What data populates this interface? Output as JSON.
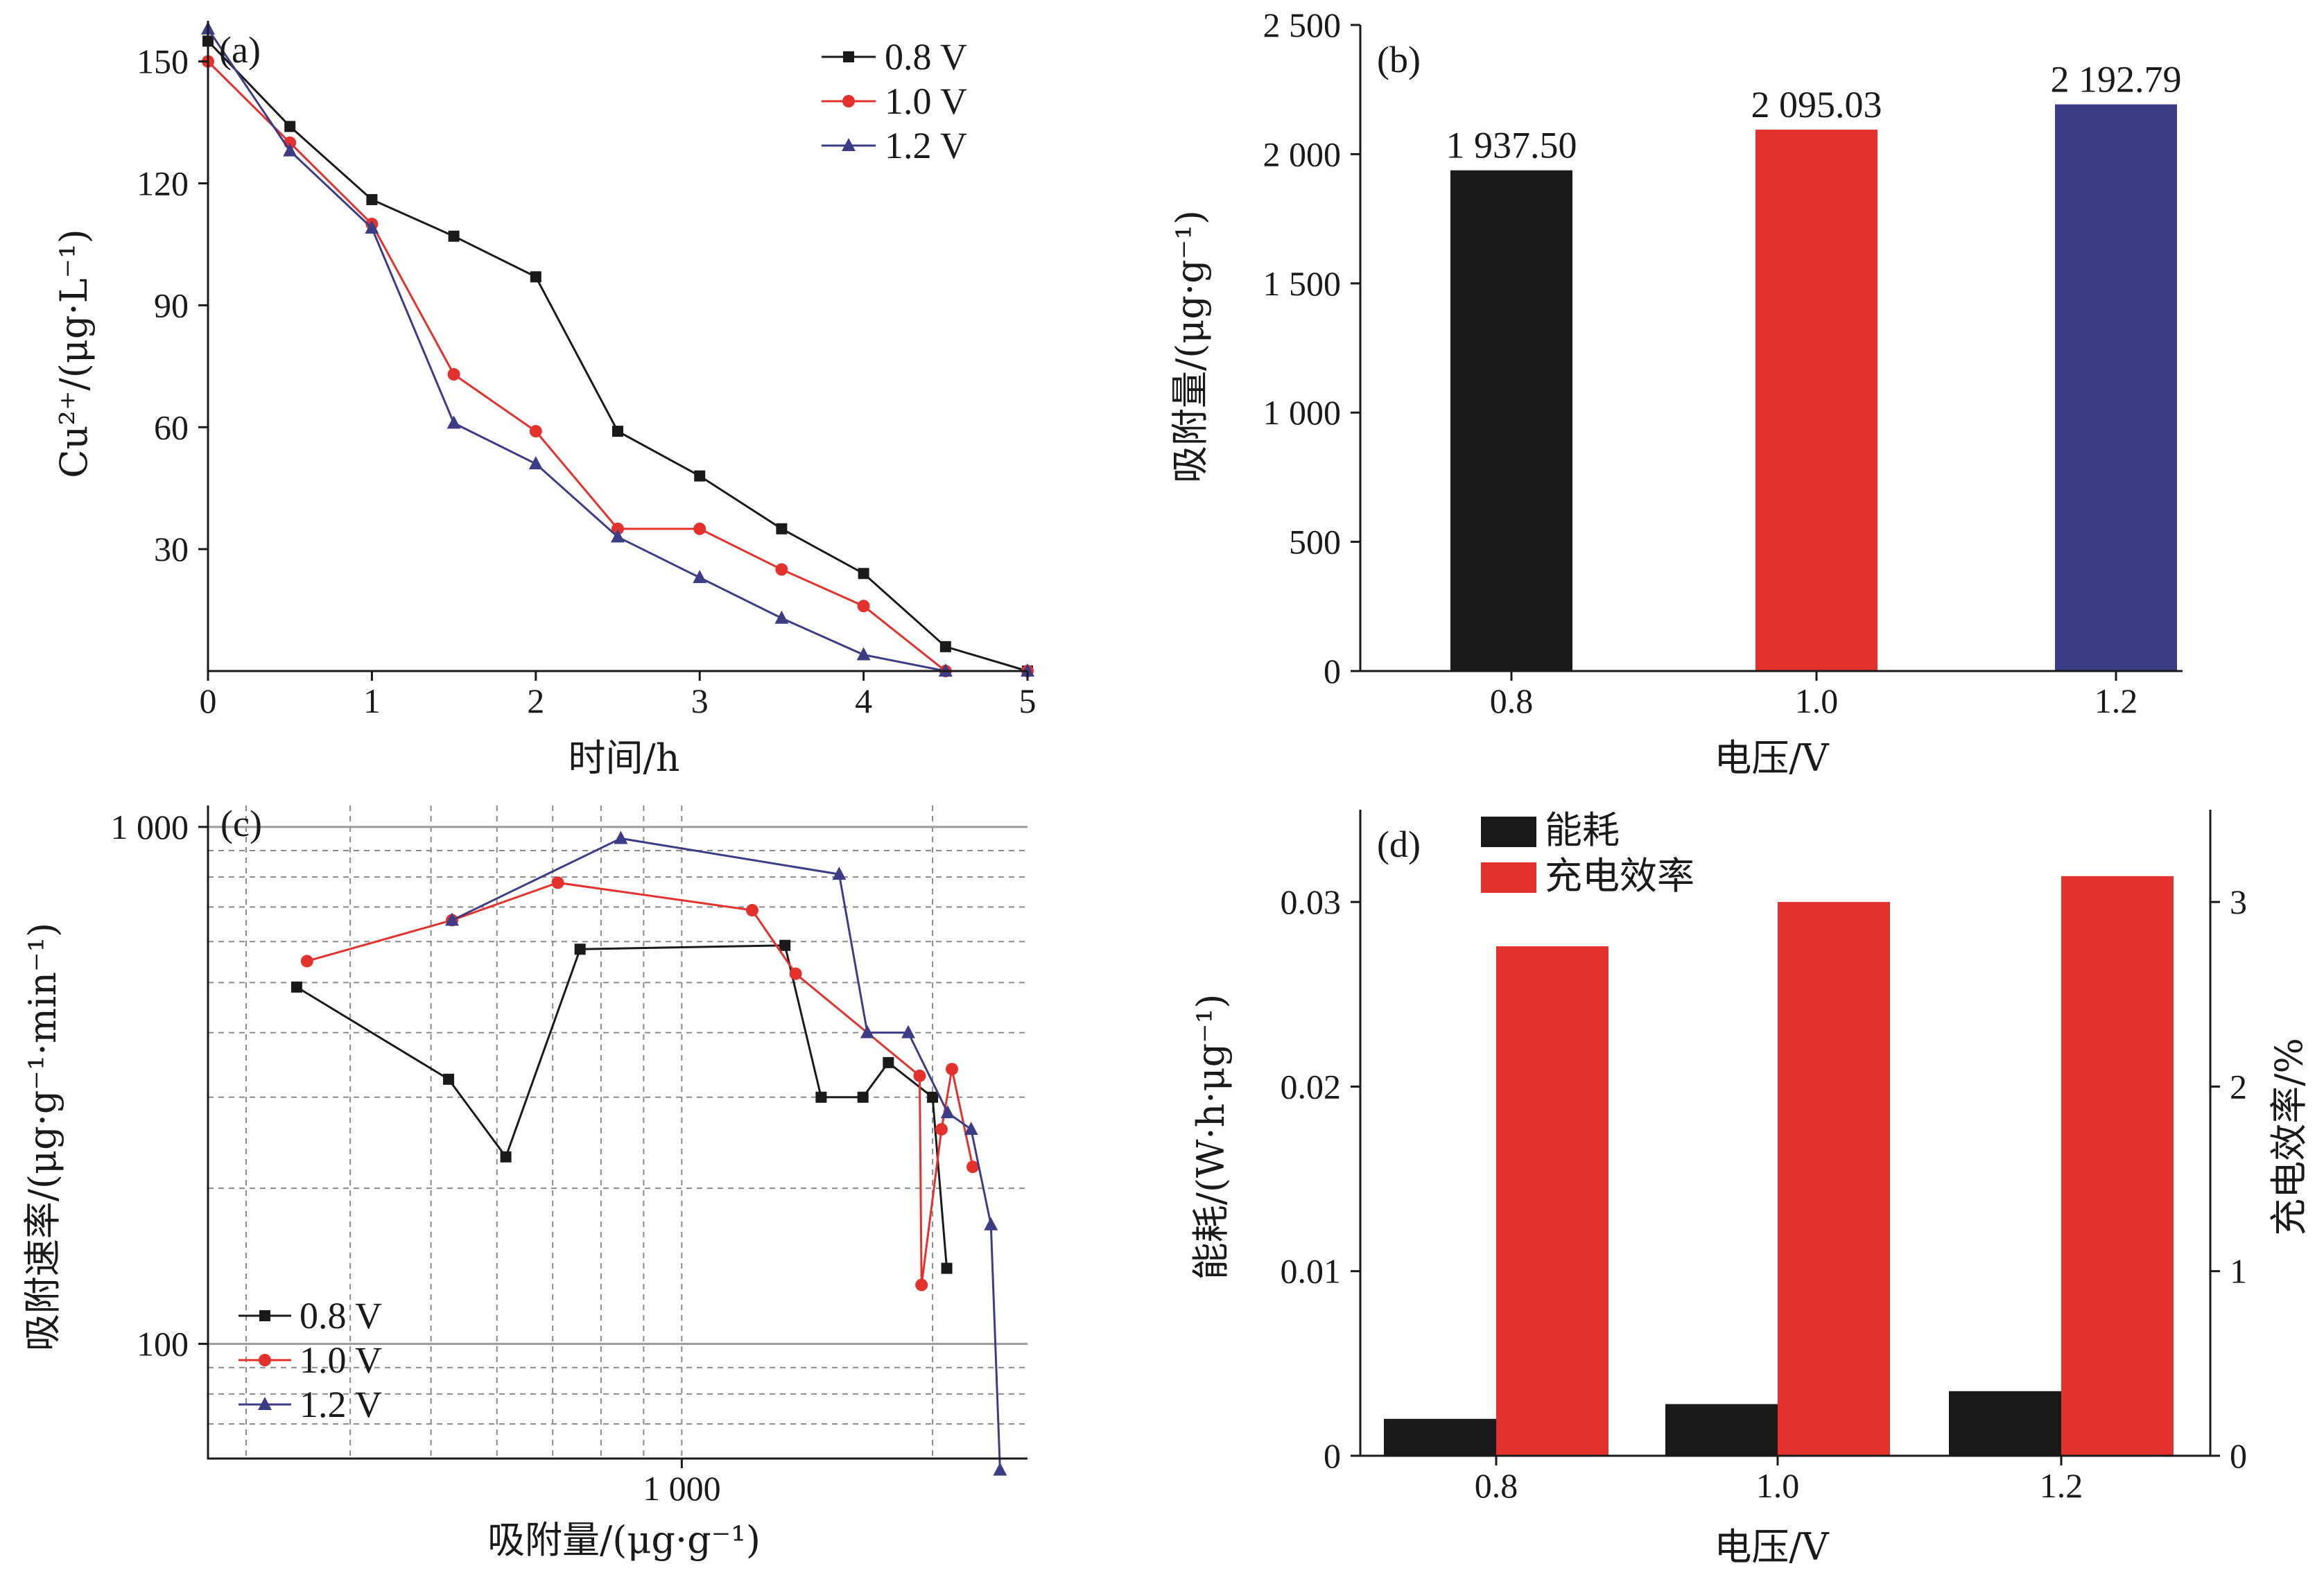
{
  "chart_data": [
    {
      "id": "a",
      "type": "line",
      "panel_label": "(a)",
      "xlabel": "时间/h",
      "ylabel": "Cu²⁺/(μg·L⁻¹)",
      "xlim": [
        0,
        5
      ],
      "ylim": [
        0,
        160
      ],
      "xticks": [
        "0",
        "1",
        "2",
        "3",
        "4",
        "5"
      ],
      "yticks": [
        "30",
        "60",
        "90",
        "120",
        "150"
      ],
      "legend_position": "top-right",
      "x": [
        0,
        0.5,
        1,
        1.5,
        2,
        2.5,
        3,
        3.5,
        4,
        4.5,
        5
      ],
      "series": [
        {
          "name": "0.8 V",
          "color": "#1a1a1a",
          "marker": "square",
          "values": [
            155,
            134,
            116,
            107,
            97,
            59,
            48,
            35,
            24,
            6,
            0
          ]
        },
        {
          "name": "1.0 V",
          "color": "#e3312d",
          "marker": "circle",
          "values": [
            150,
            130,
            110,
            73,
            59,
            35,
            35,
            25,
            16,
            0,
            0
          ]
        },
        {
          "name": "1.2 V",
          "color": "#3c3d85",
          "marker": "triangle",
          "values": [
            158,
            128,
            109,
            61,
            51,
            33,
            23,
            13,
            4,
            0,
            0
          ]
        }
      ]
    },
    {
      "id": "b",
      "type": "bar",
      "panel_label": "(b)",
      "xlabel": "电压/V",
      "ylabel": "吸附量/(μg·g⁻¹)",
      "ylim": [
        0,
        2500
      ],
      "yticks": [
        "0",
        "500",
        "1 000",
        "1 500",
        "2 000",
        "2 500"
      ],
      "categories": [
        "0.8",
        "1.0",
        "1.2"
      ],
      "values": [
        1937.5,
        2095.03,
        2192.79
      ],
      "value_labels": [
        "1 937.50",
        "2 095.03",
        "2 192.79"
      ],
      "colors": [
        "#1a1a1a",
        "#e3312d",
        "#3c3d85"
      ]
    },
    {
      "id": "c",
      "type": "line",
      "panel_label": "(c)",
      "xlabel": "吸附量/(μg·g⁻¹)",
      "ylabel": "吸附速率/(μg·g⁻¹·min⁻¹)",
      "xscale": "log",
      "yscale": "log",
      "xlim": [
        270,
        2600
      ],
      "ylim": [
        60,
        1100
      ],
      "xticks": [
        "1 000"
      ],
      "yticks": [
        "100",
        "1 000"
      ],
      "grid": true,
      "legend_position": "bottom-left",
      "series": [
        {
          "name": "0.8 V",
          "color": "#1a1a1a",
          "marker": "square",
          "x": [
            345,
            525,
            615,
            755,
            1330,
            1470,
            1650,
            1770,
            2000,
            2080
          ],
          "y": [
            490,
            325,
            230,
            580,
            590,
            300,
            300,
            350,
            300,
            140
          ]
        },
        {
          "name": "1.0 V",
          "color": "#e3312d",
          "marker": "circle",
          "x": [
            355,
            530,
            710,
            1215,
            1370,
            1930,
            1940,
            2050,
            2110,
            2235
          ],
          "y": [
            550,
            660,
            780,
            690,
            520,
            330,
            130,
            260,
            340,
            220
          ]
        },
        {
          "name": "1.2 V",
          "color": "#3c3d85",
          "marker": "triangle",
          "x": [
            530,
            845,
            1545,
            1670,
            1870,
            2085,
            2225,
            2350,
            2410
          ],
          "y": [
            660,
            950,
            810,
            400,
            400,
            280,
            260,
            170,
            57
          ]
        }
      ]
    },
    {
      "id": "d",
      "type": "bar",
      "panel_label": "(d)",
      "xlabel": "电压/V",
      "ylabel": "能耗/(W·h·μg⁻¹)",
      "y2label": "充电效率/%",
      "ylim": [
        0,
        0.035
      ],
      "y2lim": [
        0,
        3.5
      ],
      "yticks": [
        "0",
        "0.01",
        "0.02",
        "0.03"
      ],
      "y2ticks": [
        "0",
        "1",
        "2",
        "3"
      ],
      "categories": [
        "0.8",
        "1.0",
        "1.2"
      ],
      "legend_position": "top-left",
      "series": [
        {
          "name": "能耗",
          "axis": "left",
          "color": "#1a1a1a",
          "values": [
            0.002,
            0.0028,
            0.0035
          ]
        },
        {
          "name": "充电效率",
          "axis": "right",
          "color": "#e3312d",
          "values": [
            2.76,
            3.0,
            3.14
          ]
        }
      ]
    }
  ]
}
